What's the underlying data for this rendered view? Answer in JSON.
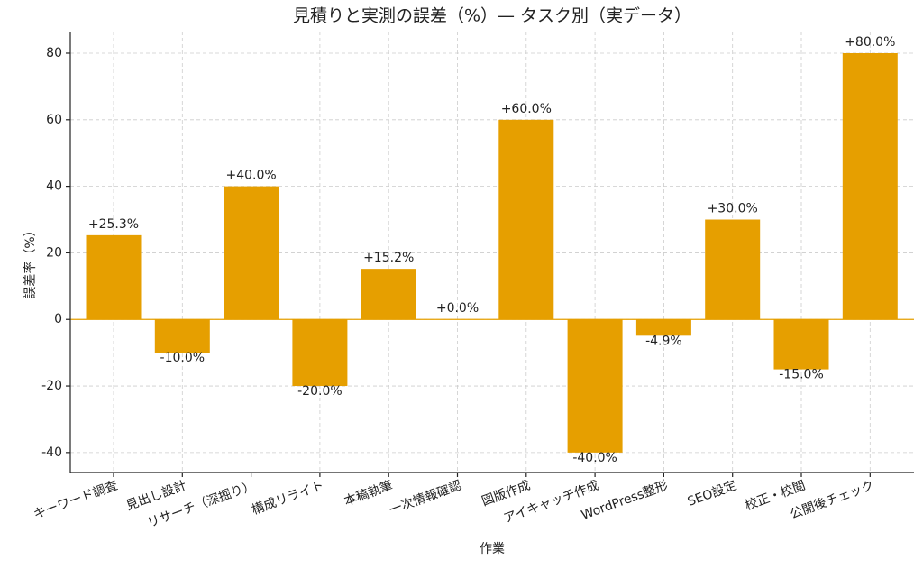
{
  "chart_data": {
    "type": "bar",
    "title": "見積りと実測の誤差（%）— タスク別（実データ）",
    "x_label": "作業",
    "y_label": "誤差率（%）",
    "categories": [
      "キーワード調査",
      "見出し設計",
      "リサーチ（深掘り）",
      "構成リライト",
      "本稿執筆",
      "一次情報確認",
      "図版作成",
      "アイキャッチ作成",
      "WordPress整形",
      "SEO設定",
      "校正・校閲",
      "公開後チェック"
    ],
    "values": [
      25.3,
      -10.0,
      40.0,
      -20.0,
      15.2,
      0.0,
      60.0,
      -40.0,
      -4.9,
      30.0,
      -15.0,
      80.0
    ],
    "value_labels": [
      "+25.3%",
      "-10.0%",
      "+40.0%",
      "-20.0%",
      "+15.2%",
      "+0.0%",
      "+60.0%",
      "-40.0%",
      "-4.9%",
      "+30.0%",
      "-15.0%",
      "+80.0%"
    ],
    "color": "#e69f00",
    "ylim": [
      -46,
      86.5
    ],
    "yticks": [
      -40,
      -20,
      0,
      20,
      40,
      60,
      80
    ],
    "grid": true
  }
}
